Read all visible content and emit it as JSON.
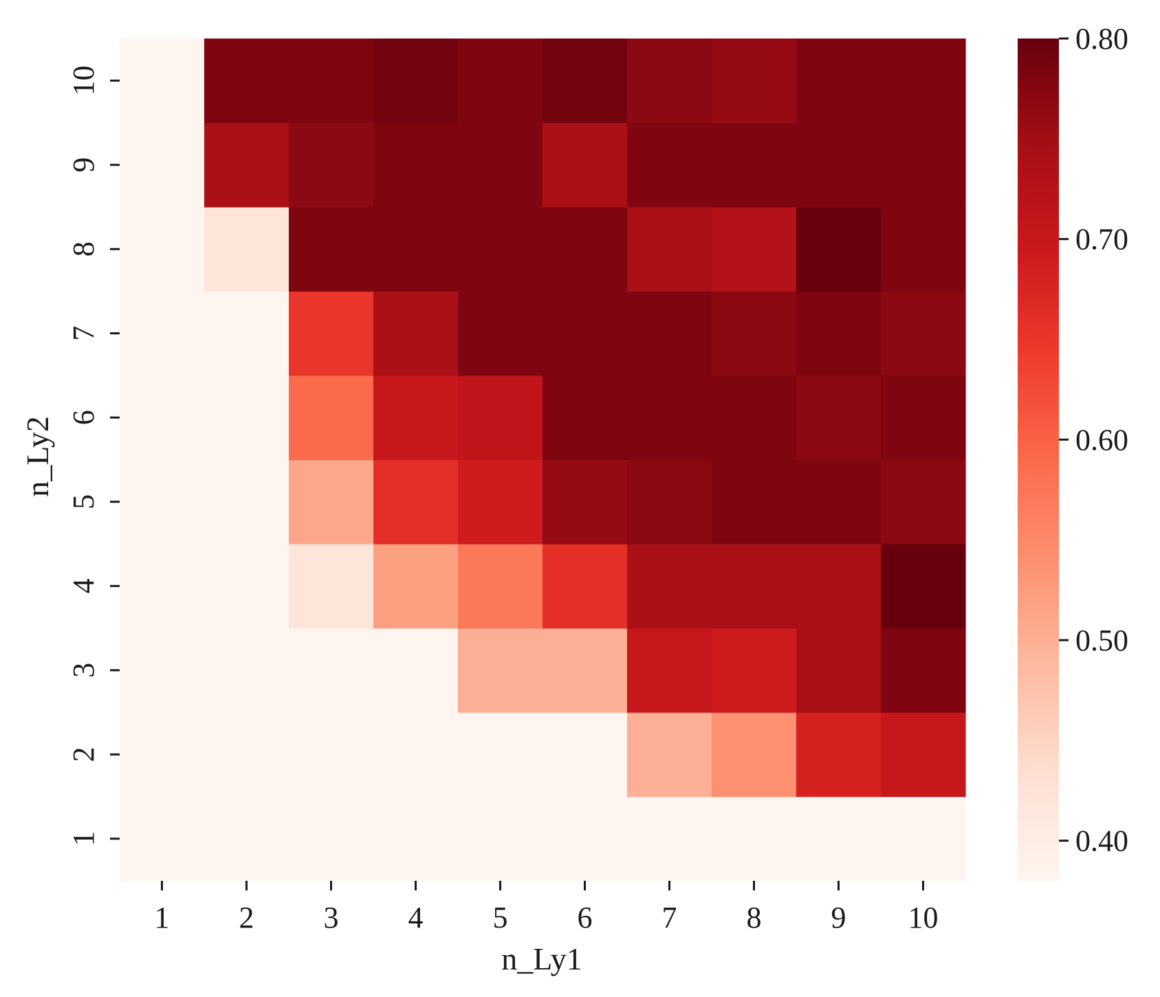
{
  "chart_data": {
    "type": "heatmap",
    "title": "",
    "xlabel": "n_Ly1",
    "ylabel": "n_Ly2",
    "x_categories": [
      "1",
      "2",
      "3",
      "4",
      "5",
      "6",
      "7",
      "8",
      "9",
      "10"
    ],
    "y_categories": [
      "1",
      "2",
      "3",
      "4",
      "5",
      "6",
      "7",
      "8",
      "9",
      "10"
    ],
    "values_rows_by_y": [
      [
        0.38,
        0.38,
        0.38,
        0.38,
        0.38,
        0.38,
        0.38,
        0.38,
        0.38,
        0.38
      ],
      [
        0.38,
        0.38,
        0.38,
        0.38,
        0.38,
        0.38,
        0.5,
        0.54,
        0.68,
        0.7
      ],
      [
        0.38,
        0.38,
        0.38,
        0.38,
        0.5,
        0.5,
        0.7,
        0.69,
        0.74,
        0.78
      ],
      [
        0.38,
        0.38,
        0.42,
        0.52,
        0.57,
        0.66,
        0.74,
        0.74,
        0.74,
        0.8
      ],
      [
        0.38,
        0.38,
        0.51,
        0.66,
        0.69,
        0.76,
        0.77,
        0.78,
        0.78,
        0.77
      ],
      [
        0.38,
        0.38,
        0.59,
        0.7,
        0.71,
        0.78,
        0.78,
        0.78,
        0.77,
        0.78
      ],
      [
        0.38,
        0.38,
        0.65,
        0.74,
        0.78,
        0.78,
        0.78,
        0.77,
        0.78,
        0.77
      ],
      [
        0.38,
        0.42,
        0.78,
        0.78,
        0.78,
        0.78,
        0.74,
        0.73,
        0.8,
        0.78
      ],
      [
        0.38,
        0.74,
        0.77,
        0.78,
        0.78,
        0.74,
        0.78,
        0.78,
        0.78,
        0.78
      ],
      [
        0.38,
        0.78,
        0.78,
        0.79,
        0.78,
        0.79,
        0.77,
        0.76,
        0.78,
        0.78
      ]
    ],
    "colorbar": {
      "colormap": "Reds",
      "range": [
        0.38,
        0.8
      ],
      "ticks": [
        0.4,
        0.5,
        0.6,
        0.7,
        0.8
      ],
      "tick_labels": [
        "0.40",
        "0.50",
        "0.60",
        "0.70",
        "0.80"
      ]
    },
    "colormap_stops": [
      "#fff5f0",
      "#fee0d2",
      "#fcbba1",
      "#fc9272",
      "#fb6a4a",
      "#ef3b2c",
      "#cb181d",
      "#a50f15",
      "#67000d"
    ],
    "grid": false
  }
}
